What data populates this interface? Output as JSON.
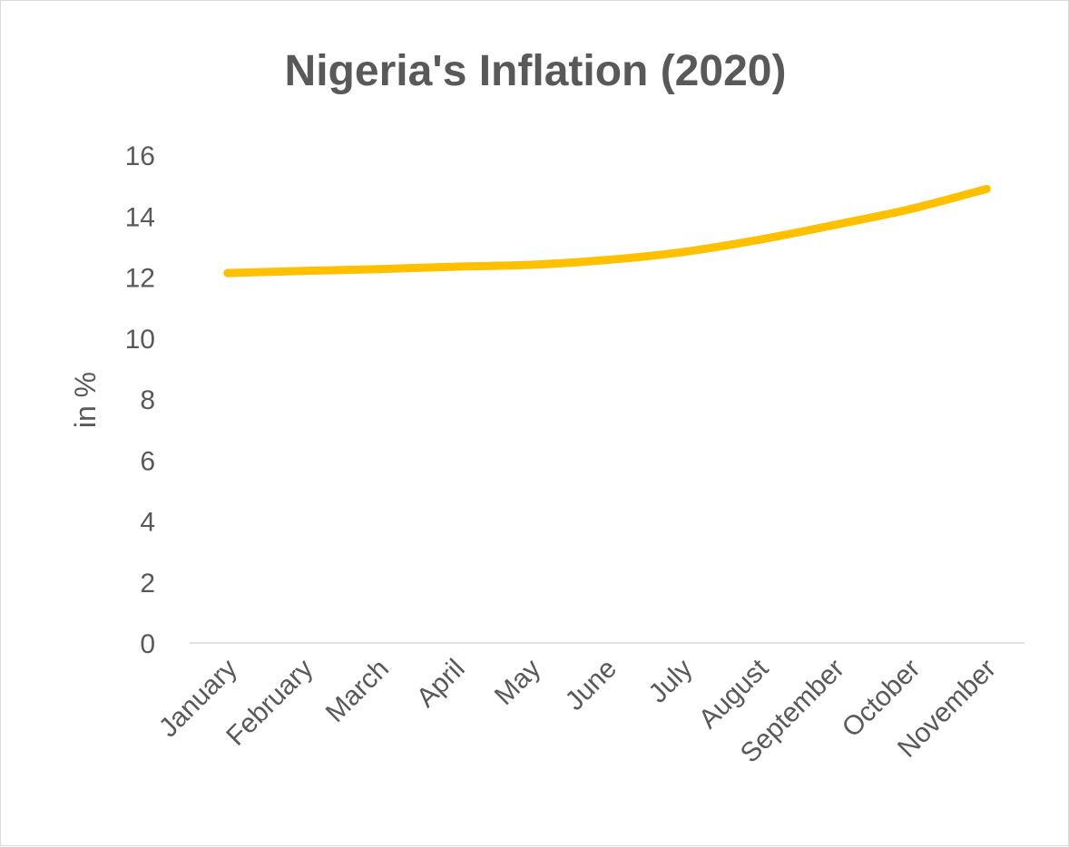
{
  "chart_data": {
    "type": "line",
    "title": "Nigeria's Inflation (2020)",
    "xlabel": "",
    "ylabel": "in %",
    "categories": [
      "January",
      "February",
      "March",
      "April",
      "May",
      "June",
      "July",
      "August",
      "September",
      "October",
      "November"
    ],
    "series": [
      {
        "values": [
          12.13,
          12.2,
          12.26,
          12.34,
          12.4,
          12.56,
          12.82,
          13.22,
          13.71,
          14.23,
          14.89
        ],
        "color": "#FFC000"
      }
    ],
    "ylim": [
      0,
      16
    ],
    "yticks": [
      "0",
      "2",
      "4",
      "6",
      "8",
      "10",
      "12",
      "14",
      "16"
    ],
    "grid": false,
    "legend": "none",
    "smooth": true
  }
}
